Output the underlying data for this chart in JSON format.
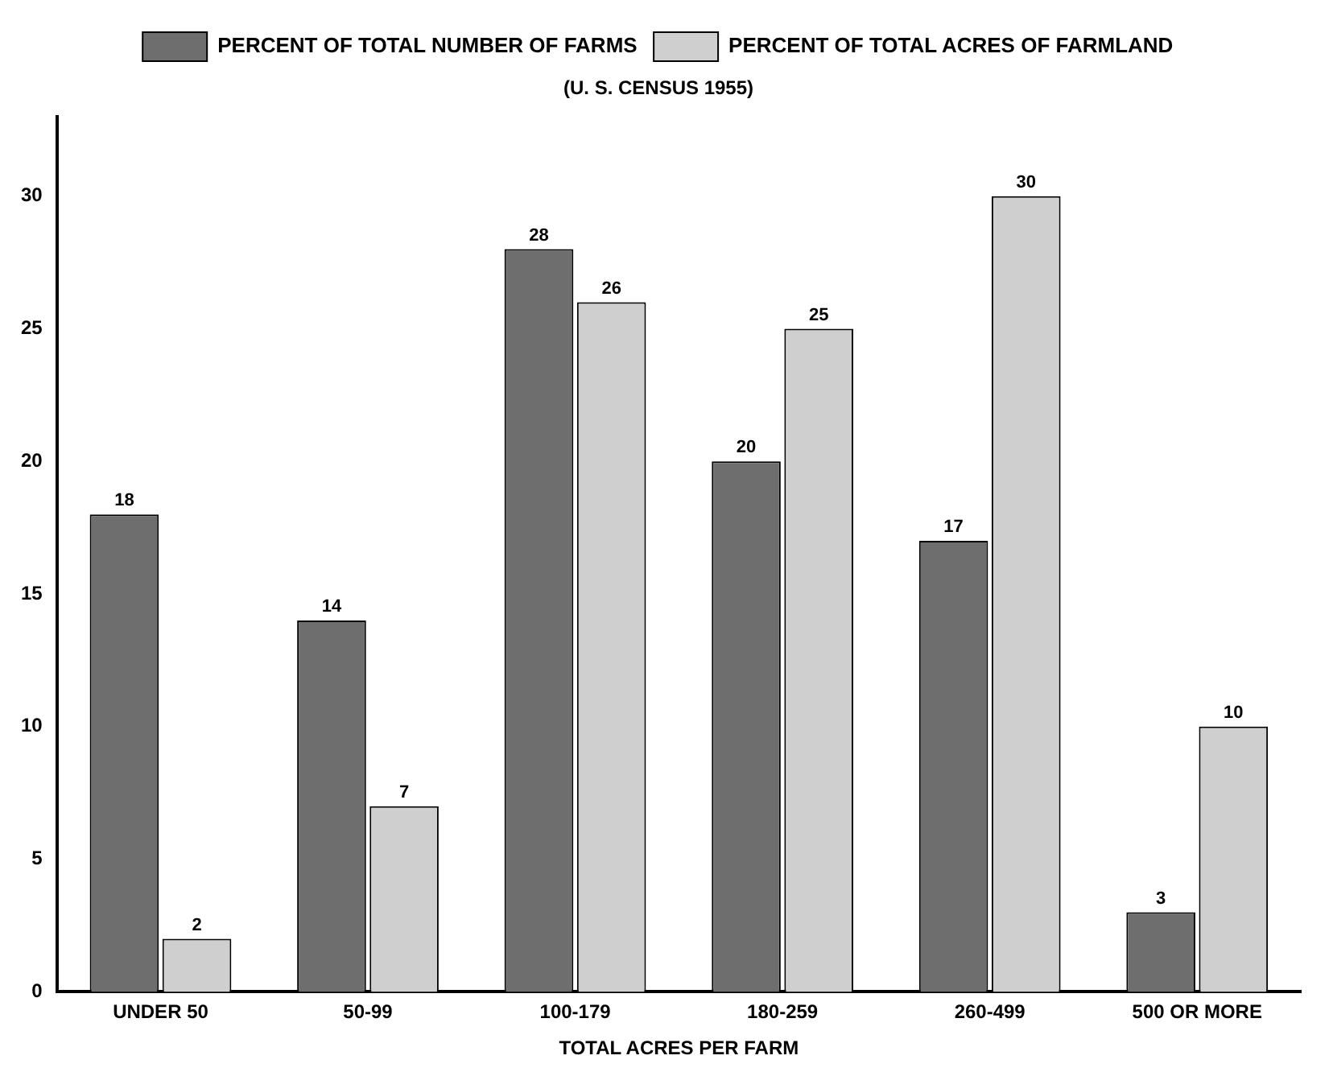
{
  "chart_data": {
    "type": "bar",
    "subtitle": "(U. S. CENSUS 1955)",
    "xlabel": "TOTAL ACRES PER FARM",
    "categories": [
      "UNDER 50",
      "50-99",
      "100-179",
      "180-259",
      "260-499",
      "500 OR MORE"
    ],
    "series": [
      {
        "name": "PERCENT OF TOTAL NUMBER OF FARMS",
        "color": "#6e6e6e",
        "values": [
          18,
          14,
          28,
          20,
          17,
          3
        ]
      },
      {
        "name": "PERCENT OF TOTAL ACRES OF FARMLAND",
        "color": "#cfcfcf",
        "values": [
          2,
          7,
          26,
          25,
          30,
          10
        ]
      }
    ],
    "ylim": [
      0,
      33
    ],
    "yticks": [
      0,
      5,
      10,
      15,
      20,
      25,
      30
    ],
    "grid": false,
    "legend": "top",
    "data_labels": true
  }
}
